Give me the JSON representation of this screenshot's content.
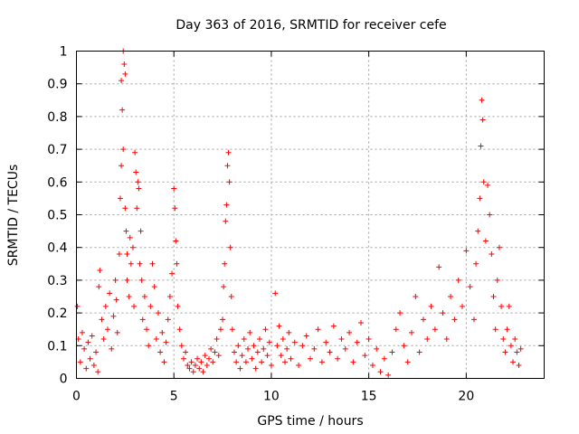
{
  "chart_data": {
    "type": "scatter",
    "title": "Day 363 of 2016, SRMTID for receiver cefe",
    "xlabel": "GPS time / hours",
    "ylabel": "SRMTID / TECUs",
    "xlim": [
      0,
      24
    ],
    "ylim": [
      0,
      1
    ],
    "xticks": [
      "0",
      "5",
      "10",
      "15",
      "20"
    ],
    "yticks": [
      "0",
      "0.1",
      "0.2",
      "0.3",
      "0.4",
      "0.5",
      "0.6",
      "0.7",
      "0.8",
      "0.9",
      "1"
    ],
    "grid": true,
    "marker": "+",
    "color": "#ff0000",
    "series": [
      {
        "name": "SRMTID",
        "points": [
          [
            0.05,
            0.22
          ],
          [
            0.1,
            0.12
          ],
          [
            0.2,
            0.05
          ],
          [
            0.3,
            0.14
          ],
          [
            0.4,
            0.09
          ],
          [
            0.5,
            0.03
          ],
          [
            0.6,
            0.11
          ],
          [
            0.7,
            0.06
          ],
          [
            0.8,
            0.13
          ],
          [
            0.9,
            0.04
          ],
          [
            1.0,
            0.08
          ],
          [
            1.1,
            0.02
          ],
          [
            1.15,
            0.28
          ],
          [
            1.2,
            0.33
          ],
          [
            1.3,
            0.18
          ],
          [
            1.4,
            0.12
          ],
          [
            1.5,
            0.22
          ],
          [
            1.6,
            0.15
          ],
          [
            1.7,
            0.26
          ],
          [
            1.8,
            0.09
          ],
          [
            1.9,
            0.19
          ],
          [
            2.0,
            0.3
          ],
          [
            2.05,
            0.24
          ],
          [
            2.1,
            0.14
          ],
          [
            2.2,
            0.38
          ],
          [
            2.25,
            0.55
          ],
          [
            2.3,
            0.65
          ],
          [
            2.3,
            0.91
          ],
          [
            2.35,
            0.82
          ],
          [
            2.4,
            0.7
          ],
          [
            2.4,
            1.0
          ],
          [
            2.45,
            0.96
          ],
          [
            2.5,
            0.93
          ],
          [
            2.5,
            0.52
          ],
          [
            2.55,
            0.45
          ],
          [
            2.6,
            0.3
          ],
          [
            2.6,
            0.38
          ],
          [
            2.7,
            0.25
          ],
          [
            2.75,
            0.43
          ],
          [
            2.8,
            0.35
          ],
          [
            2.9,
            0.4
          ],
          [
            2.95,
            0.22
          ],
          [
            3.0,
            0.69
          ],
          [
            3.05,
            0.63
          ],
          [
            3.1,
            0.52
          ],
          [
            3.15,
            0.6
          ],
          [
            3.2,
            0.58
          ],
          [
            3.25,
            0.35
          ],
          [
            3.3,
            0.45
          ],
          [
            3.35,
            0.3
          ],
          [
            3.4,
            0.18
          ],
          [
            3.5,
            0.25
          ],
          [
            3.6,
            0.15
          ],
          [
            3.7,
            0.1
          ],
          [
            3.8,
            0.22
          ],
          [
            3.9,
            0.35
          ],
          [
            4.0,
            0.28
          ],
          [
            4.1,
            0.12
          ],
          [
            4.2,
            0.2
          ],
          [
            4.3,
            0.08
          ],
          [
            4.4,
            0.14
          ],
          [
            4.5,
            0.05
          ],
          [
            4.6,
            0.11
          ],
          [
            4.7,
            0.18
          ],
          [
            4.8,
            0.25
          ],
          [
            4.9,
            0.32
          ],
          [
            5.0,
            0.58
          ],
          [
            5.05,
            0.52
          ],
          [
            5.1,
            0.42
          ],
          [
            5.15,
            0.35
          ],
          [
            5.2,
            0.22
          ],
          [
            5.3,
            0.15
          ],
          [
            5.4,
            0.1
          ],
          [
            5.5,
            0.06
          ],
          [
            5.6,
            0.08
          ],
          [
            5.7,
            0.04
          ],
          [
            5.8,
            0.03
          ],
          [
            5.9,
            0.05
          ],
          [
            6.0,
            0.02
          ],
          [
            6.1,
            0.04
          ],
          [
            6.2,
            0.06
          ],
          [
            6.3,
            0.03
          ],
          [
            6.4,
            0.05
          ],
          [
            6.5,
            0.02
          ],
          [
            6.6,
            0.07
          ],
          [
            6.7,
            0.04
          ],
          [
            6.8,
            0.06
          ],
          [
            6.9,
            0.09
          ],
          [
            7.0,
            0.05
          ],
          [
            7.1,
            0.08
          ],
          [
            7.2,
            0.12
          ],
          [
            7.3,
            0.07
          ],
          [
            7.4,
            0.15
          ],
          [
            7.5,
            0.18
          ],
          [
            7.55,
            0.28
          ],
          [
            7.6,
            0.35
          ],
          [
            7.65,
            0.48
          ],
          [
            7.7,
            0.53
          ],
          [
            7.75,
            0.65
          ],
          [
            7.8,
            0.69
          ],
          [
            7.85,
            0.6
          ],
          [
            7.9,
            0.4
          ],
          [
            7.95,
            0.25
          ],
          [
            8.0,
            0.15
          ],
          [
            8.1,
            0.08
          ],
          [
            8.2,
            0.05
          ],
          [
            8.3,
            0.1
          ],
          [
            8.4,
            0.03
          ],
          [
            8.5,
            0.07
          ],
          [
            8.6,
            0.12
          ],
          [
            8.7,
            0.05
          ],
          [
            8.8,
            0.09
          ],
          [
            8.9,
            0.14
          ],
          [
            9.0,
            0.06
          ],
          [
            9.1,
            0.1
          ],
          [
            9.2,
            0.03
          ],
          [
            9.3,
            0.08
          ],
          [
            9.4,
            0.12
          ],
          [
            9.5,
            0.05
          ],
          [
            9.6,
            0.09
          ],
          [
            9.7,
            0.15
          ],
          [
            9.8,
            0.07
          ],
          [
            9.9,
            0.11
          ],
          [
            10.0,
            0.04
          ],
          [
            10.2,
            0.26
          ],
          [
            10.3,
            0.1
          ],
          [
            10.4,
            0.16
          ],
          [
            10.5,
            0.07
          ],
          [
            10.6,
            0.12
          ],
          [
            10.7,
            0.05
          ],
          [
            10.8,
            0.09
          ],
          [
            10.9,
            0.14
          ],
          [
            11.0,
            0.06
          ],
          [
            11.2,
            0.11
          ],
          [
            11.4,
            0.04
          ],
          [
            11.6,
            0.1
          ],
          [
            11.8,
            0.13
          ],
          [
            12.0,
            0.06
          ],
          [
            12.2,
            0.09
          ],
          [
            12.4,
            0.15
          ],
          [
            12.6,
            0.05
          ],
          [
            12.8,
            0.11
          ],
          [
            13.0,
            0.08
          ],
          [
            13.2,
            0.16
          ],
          [
            13.4,
            0.06
          ],
          [
            13.6,
            0.12
          ],
          [
            13.8,
            0.09
          ],
          [
            14.0,
            0.14
          ],
          [
            14.2,
            0.05
          ],
          [
            14.4,
            0.11
          ],
          [
            14.6,
            0.17
          ],
          [
            14.8,
            0.07
          ],
          [
            15.0,
            0.12
          ],
          [
            15.2,
            0.04
          ],
          [
            15.4,
            0.09
          ],
          [
            15.6,
            0.02
          ],
          [
            15.8,
            0.06
          ],
          [
            16.0,
            0.01
          ],
          [
            16.2,
            0.08
          ],
          [
            16.4,
            0.15
          ],
          [
            16.6,
            0.2
          ],
          [
            16.8,
            0.1
          ],
          [
            17.0,
            0.05
          ],
          [
            17.2,
            0.14
          ],
          [
            17.4,
            0.25
          ],
          [
            17.6,
            0.08
          ],
          [
            17.8,
            0.18
          ],
          [
            18.0,
            0.12
          ],
          [
            18.2,
            0.22
          ],
          [
            18.4,
            0.15
          ],
          [
            18.6,
            0.34
          ],
          [
            18.8,
            0.2
          ],
          [
            19.0,
            0.12
          ],
          [
            19.2,
            0.25
          ],
          [
            19.4,
            0.18
          ],
          [
            19.6,
            0.3
          ],
          [
            19.8,
            0.22
          ],
          [
            20.0,
            0.39
          ],
          [
            20.2,
            0.28
          ],
          [
            20.4,
            0.18
          ],
          [
            20.5,
            0.35
          ],
          [
            20.6,
            0.45
          ],
          [
            20.7,
            0.55
          ],
          [
            20.75,
            0.71
          ],
          [
            20.8,
            0.85
          ],
          [
            20.85,
            0.79
          ],
          [
            20.9,
            0.6
          ],
          [
            21.0,
            0.42
          ],
          [
            21.1,
            0.59
          ],
          [
            21.2,
            0.5
          ],
          [
            21.3,
            0.38
          ],
          [
            21.4,
            0.25
          ],
          [
            21.5,
            0.15
          ],
          [
            21.6,
            0.3
          ],
          [
            21.7,
            0.4
          ],
          [
            21.8,
            0.22
          ],
          [
            21.9,
            0.12
          ],
          [
            22.0,
            0.08
          ],
          [
            22.1,
            0.15
          ],
          [
            22.2,
            0.22
          ],
          [
            22.3,
            0.1
          ],
          [
            22.4,
            0.05
          ],
          [
            22.5,
            0.12
          ],
          [
            22.6,
            0.08
          ],
          [
            22.7,
            0.04
          ],
          [
            22.8,
            0.09
          ]
        ]
      }
    ]
  }
}
